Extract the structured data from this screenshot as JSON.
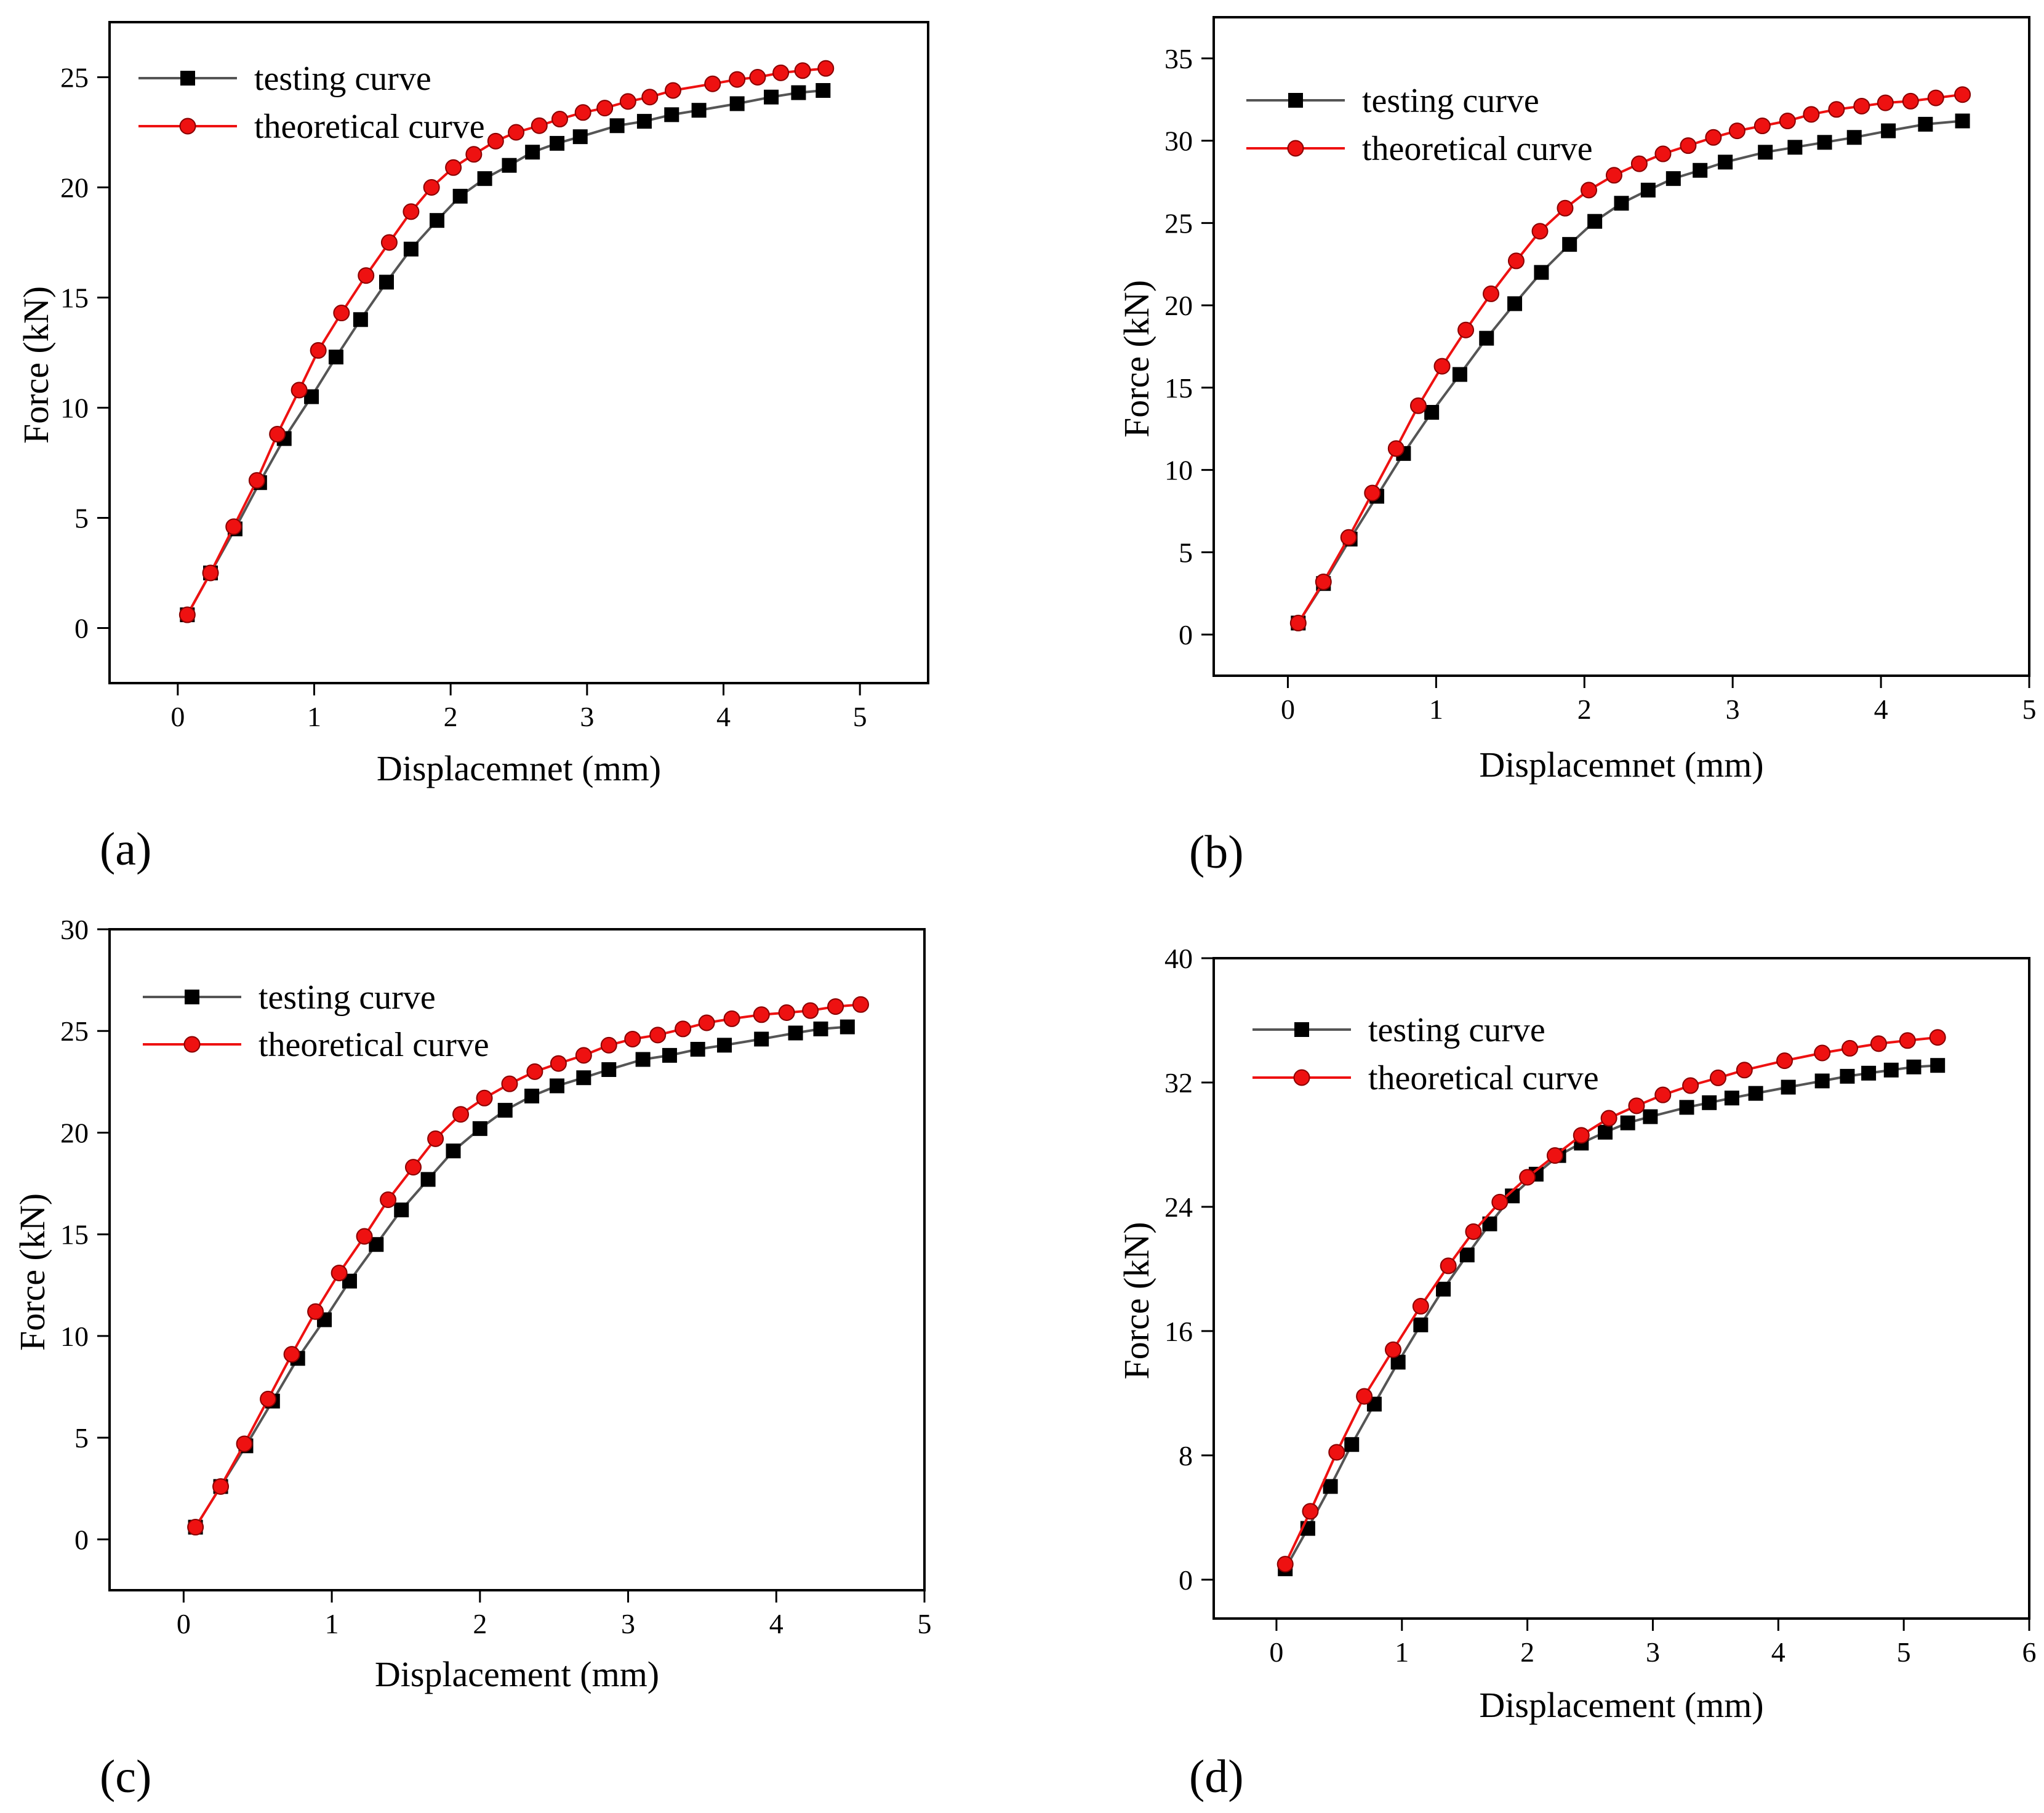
{
  "figure": {
    "panels": [
      {
        "id": "a",
        "panel_label": "(a)",
        "chart_data": {
          "type": "line",
          "title": "",
          "xlabel": "Displacemnet (mm)",
          "ylabel": "Force (kN)",
          "xlim": [
            -0.5,
            5.5
          ],
          "ylim": [
            -2.5,
            27.5
          ],
          "xticks": [
            0,
            1,
            2,
            3,
            4,
            5
          ],
          "yticks": [
            0,
            5,
            10,
            15,
            20,
            25
          ],
          "legend_position": "top-left",
          "series": [
            {
              "name": "testing curve",
              "color": "#000000",
              "line_color": "#555555",
              "marker": "square",
              "x": [
                0.07,
                0.24,
                0.42,
                0.6,
                0.78,
                0.98,
                1.16,
                1.34,
                1.53,
                1.71,
                1.9,
                2.07,
                2.25,
                2.43,
                2.6,
                2.78,
                2.95,
                3.22,
                3.42,
                3.62,
                3.82,
                4.1,
                4.35,
                4.55,
                4.73
              ],
              "y": [
                0.6,
                2.5,
                4.5,
                6.6,
                8.6,
                10.5,
                12.3,
                14.0,
                15.7,
                17.2,
                18.5,
                19.6,
                20.4,
                21.0,
                21.6,
                22.0,
                22.3,
                22.8,
                23.0,
                23.3,
                23.5,
                23.8,
                24.1,
                24.3,
                24.4
              ]
            },
            {
              "name": "theoretical curve",
              "color": "#ee1111",
              "line_color": "#ee1111",
              "marker": "circle",
              "x": [
                0.07,
                0.24,
                0.41,
                0.58,
                0.73,
                0.89,
                1.03,
                1.2,
                1.38,
                1.55,
                1.71,
                1.86,
                2.02,
                2.17,
                2.33,
                2.48,
                2.65,
                2.8,
                2.97,
                3.13,
                3.3,
                3.46,
                3.63,
                3.92,
                4.1,
                4.25,
                4.42,
                4.58,
                4.75
              ],
              "y": [
                0.6,
                2.5,
                4.6,
                6.7,
                8.8,
                10.8,
                12.6,
                14.3,
                16.0,
                17.5,
                18.9,
                20.0,
                20.9,
                21.5,
                22.1,
                22.5,
                22.8,
                23.1,
                23.4,
                23.6,
                23.9,
                24.1,
                24.4,
                24.7,
                24.9,
                25.0,
                25.2,
                25.3,
                25.4
              ]
            }
          ]
        }
      },
      {
        "id": "b",
        "panel_label": "(b)",
        "chart_data": {
          "type": "line",
          "title": "",
          "xlabel": "Displacemnet (mm)",
          "ylabel": "Force (kN)",
          "xlim": [
            -0.5,
            5.0
          ],
          "ylim": [
            -2.5,
            37.5
          ],
          "xticks": [
            0,
            1,
            2,
            3,
            4,
            5
          ],
          "yticks": [
            0,
            5,
            10,
            15,
            20,
            25,
            30,
            35
          ],
          "legend_position": "top-left",
          "series": [
            {
              "name": "testing curve",
              "color": "#000000",
              "line_color": "#555555",
              "marker": "square",
              "x": [
                0.07,
                0.24,
                0.42,
                0.6,
                0.78,
                0.97,
                1.16,
                1.34,
                1.53,
                1.71,
                1.9,
                2.07,
                2.25,
                2.43,
                2.6,
                2.78,
                2.95,
                3.22,
                3.42,
                3.62,
                3.82,
                4.05,
                4.3,
                4.55
              ],
              "y": [
                0.7,
                3.1,
                5.8,
                8.4,
                11.0,
                13.5,
                15.8,
                18.0,
                20.1,
                22.0,
                23.7,
                25.1,
                26.2,
                27.0,
                27.7,
                28.2,
                28.7,
                29.3,
                29.6,
                29.9,
                30.2,
                30.6,
                31.0,
                31.2
              ]
            },
            {
              "name": "theoretical curve",
              "color": "#ee1111",
              "line_color": "#ee1111",
              "marker": "circle",
              "x": [
                0.07,
                0.24,
                0.41,
                0.57,
                0.73,
                0.88,
                1.04,
                1.2,
                1.37,
                1.54,
                1.7,
                1.87,
                2.03,
                2.2,
                2.37,
                2.53,
                2.7,
                2.87,
                3.03,
                3.2,
                3.37,
                3.53,
                3.7,
                3.87,
                4.03,
                4.2,
                4.37,
                4.55
              ],
              "y": [
                0.7,
                3.2,
                5.9,
                8.6,
                11.3,
                13.9,
                16.3,
                18.5,
                20.7,
                22.7,
                24.5,
                25.9,
                27.0,
                27.9,
                28.6,
                29.2,
                29.7,
                30.2,
                30.6,
                30.9,
                31.2,
                31.6,
                31.9,
                32.1,
                32.3,
                32.4,
                32.6,
                32.8
              ]
            }
          ]
        }
      },
      {
        "id": "c",
        "panel_label": "(c)",
        "chart_data": {
          "type": "line",
          "title": "",
          "xlabel": "Displacement (mm)",
          "ylabel": "Force (kN)",
          "xlim": [
            -0.5,
            5.0
          ],
          "ylim": [
            -2.5,
            30.0
          ],
          "xticks": [
            0,
            1,
            2,
            3,
            4,
            5
          ],
          "yticks": [
            0,
            5,
            10,
            15,
            20,
            25,
            30
          ],
          "legend_position": "top-left",
          "series": [
            {
              "name": "testing curve",
              "color": "#000000",
              "line_color": "#555555",
              "marker": "square",
              "x": [
                0.08,
                0.25,
                0.42,
                0.6,
                0.77,
                0.95,
                1.12,
                1.3,
                1.47,
                1.65,
                1.82,
                2.0,
                2.17,
                2.35,
                2.52,
                2.7,
                2.87,
                3.1,
                3.28,
                3.47,
                3.65,
                3.9,
                4.13,
                4.3,
                4.48
              ],
              "y": [
                0.6,
                2.6,
                4.6,
                6.8,
                8.9,
                10.8,
                12.7,
                14.5,
                16.2,
                17.7,
                19.1,
                20.2,
                21.1,
                21.8,
                22.3,
                22.7,
                23.1,
                23.6,
                23.8,
                24.1,
                24.3,
                24.6,
                24.9,
                25.1,
                25.2
              ]
            },
            {
              "name": "theoretical curve",
              "color": "#ee1111",
              "line_color": "#ee1111",
              "marker": "circle",
              "x": [
                0.08,
                0.25,
                0.41,
                0.57,
                0.73,
                0.89,
                1.05,
                1.22,
                1.38,
                1.55,
                1.7,
                1.87,
                2.03,
                2.2,
                2.37,
                2.53,
                2.7,
                2.87,
                3.03,
                3.2,
                3.37,
                3.53,
                3.7,
                3.9,
                4.07,
                4.23,
                4.4,
                4.57
              ],
              "y": [
                0.6,
                2.6,
                4.7,
                6.9,
                9.1,
                11.2,
                13.1,
                14.9,
                16.7,
                18.3,
                19.7,
                20.9,
                21.7,
                22.4,
                23.0,
                23.4,
                23.8,
                24.3,
                24.6,
                24.8,
                25.1,
                25.4,
                25.6,
                25.8,
                25.9,
                26.0,
                26.2,
                26.3
              ]
            }
          ]
        }
      },
      {
        "id": "d",
        "panel_label": "(d)",
        "chart_data": {
          "type": "line",
          "title": "",
          "xlabel": "Displacement (mm)",
          "ylabel": "Force (kN)",
          "xlim": [
            -0.5,
            6.0
          ],
          "ylim": [
            -2.5,
            40.0
          ],
          "xticks": [
            0,
            1,
            2,
            3,
            4,
            5,
            6
          ],
          "yticks": [
            0,
            8,
            16,
            24,
            32,
            40
          ],
          "legend_position": "top-left",
          "series": [
            {
              "name": "testing curve",
              "color": "#000000",
              "line_color": "#555555",
              "marker": "square",
              "x": [
                0.07,
                0.25,
                0.43,
                0.6,
                0.78,
                0.97,
                1.15,
                1.33,
                1.52,
                1.7,
                1.88,
                2.07,
                2.25,
                2.43,
                2.62,
                2.8,
                2.98,
                3.27,
                3.45,
                3.63,
                3.82,
                4.08,
                4.35,
                4.55,
                4.72,
                4.9,
                5.08,
                5.27
              ],
              "y": [
                0.7,
                3.3,
                6.0,
                8.7,
                11.3,
                14.0,
                16.4,
                18.7,
                20.9,
                22.9,
                24.7,
                26.1,
                27.3,
                28.1,
                28.8,
                29.4,
                29.8,
                30.4,
                30.7,
                31.0,
                31.3,
                31.7,
                32.1,
                32.4,
                32.6,
                32.8,
                33.0,
                33.1
              ]
            },
            {
              "name": "theoretical curve",
              "color": "#ee1111",
              "line_color": "#ee1111",
              "marker": "circle",
              "x": [
                0.07,
                0.27,
                0.48,
                0.7,
                0.93,
                1.15,
                1.37,
                1.57,
                1.78,
                2.0,
                2.22,
                2.43,
                2.65,
                2.87,
                3.08,
                3.3,
                3.52,
                3.73,
                4.05,
                4.35,
                4.57,
                4.8,
                5.03,
                5.27
              ],
              "y": [
                1.0,
                4.4,
                8.2,
                11.8,
                14.8,
                17.6,
                20.2,
                22.4,
                24.3,
                25.9,
                27.3,
                28.6,
                29.7,
                30.5,
                31.2,
                31.8,
                32.3,
                32.8,
                33.4,
                33.9,
                34.2,
                34.5,
                34.7,
                34.9
              ]
            }
          ]
        }
      }
    ]
  }
}
